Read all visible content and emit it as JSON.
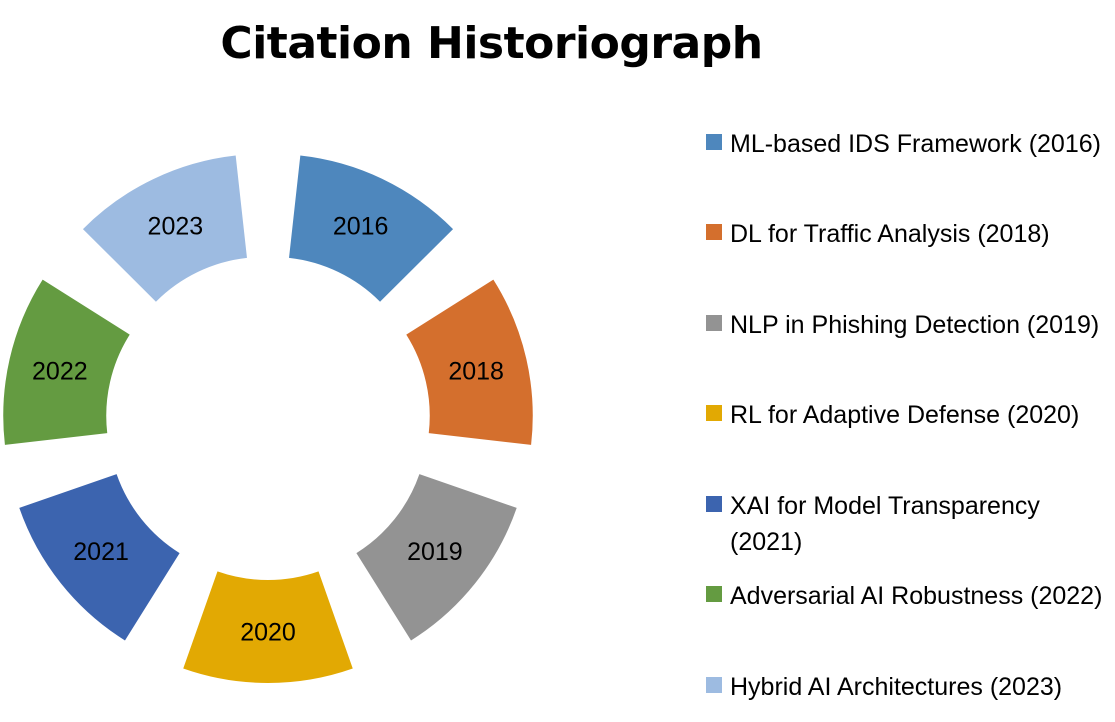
{
  "chart_data": {
    "type": "pie",
    "title": "Citation Historiograph",
    "categories": [
      "2016",
      "2018",
      "2019",
      "2020",
      "2021",
      "2022",
      "2023"
    ],
    "values": [
      1,
      1,
      1,
      1,
      1,
      1,
      1
    ],
    "legend": [
      {
        "name": "ML-based IDS Framework (2016)",
        "color": "#4e87bd"
      },
      {
        "name": "DL for Traffic Analysis (2018)",
        "color": "#d46f2d"
      },
      {
        "name": "NLP in Phishing Detection (2019)",
        "color": "#939393"
      },
      {
        "name": "RL for Adaptive Defense (2020)",
        "color": "#e2a903"
      },
      {
        "name": "XAI for Model Transparency (2021)",
        "color": "#3c64af"
      },
      {
        "name": "Adversarial AI Robustness (2022)",
        "color": "#649b41"
      },
      {
        "name": "Hybrid AI Architectures (2023)",
        "color": "#9dbbe1"
      }
    ],
    "legend_position": "right",
    "style": "exploded doughnut"
  }
}
